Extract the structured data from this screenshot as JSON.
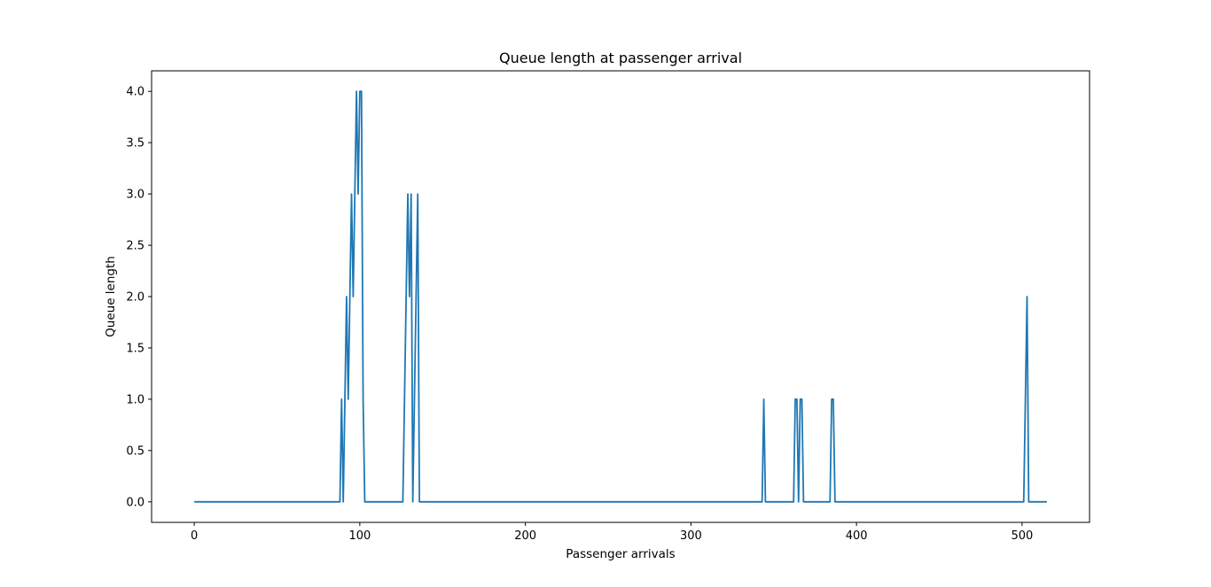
{
  "chart_data": {
    "type": "line",
    "title": "Queue length at passenger arrival",
    "xlabel": "Passenger arrivals",
    "ylabel": "Queue length",
    "xlim": [
      -25.75,
      540.75
    ],
    "ylim": [
      -0.2,
      4.2
    ],
    "xticks": [
      0,
      100,
      200,
      300,
      400,
      500
    ],
    "xtick_labels": [
      "0",
      "100",
      "200",
      "300",
      "400",
      "500"
    ],
    "yticks": [
      0.0,
      0.5,
      1.0,
      1.5,
      2.0,
      2.5,
      3.0,
      3.5,
      4.0
    ],
    "ytick_labels": [
      "0.0",
      "0.5",
      "1.0",
      "1.5",
      "2.0",
      "2.5",
      "3.0",
      "3.5",
      "4.0"
    ],
    "grid": false,
    "series_color": "#1f77b4",
    "series": [
      {
        "x": [
          0,
          88,
          89,
          90,
          91,
          92,
          93,
          94,
          95,
          96,
          97,
          98,
          99,
          100,
          101,
          102,
          103,
          126,
          127,
          128,
          129,
          130,
          131,
          132,
          133,
          134,
          135,
          136,
          343,
          344,
          345,
          362,
          363,
          364,
          365,
          366,
          367,
          368,
          384,
          385,
          386,
          387,
          501,
          502,
          503,
          504,
          515
        ],
        "y": [
          0,
          0,
          1,
          0,
          1,
          2,
          1,
          2,
          3,
          2,
          3,
          4,
          3,
          4,
          4,
          1,
          0,
          0,
          1,
          2,
          3,
          2,
          3,
          0,
          1,
          2,
          3,
          0,
          0,
          1,
          0,
          0,
          1,
          1,
          0,
          1,
          1,
          0,
          0,
          1,
          1,
          0,
          0,
          1,
          2,
          0,
          0
        ]
      }
    ]
  }
}
